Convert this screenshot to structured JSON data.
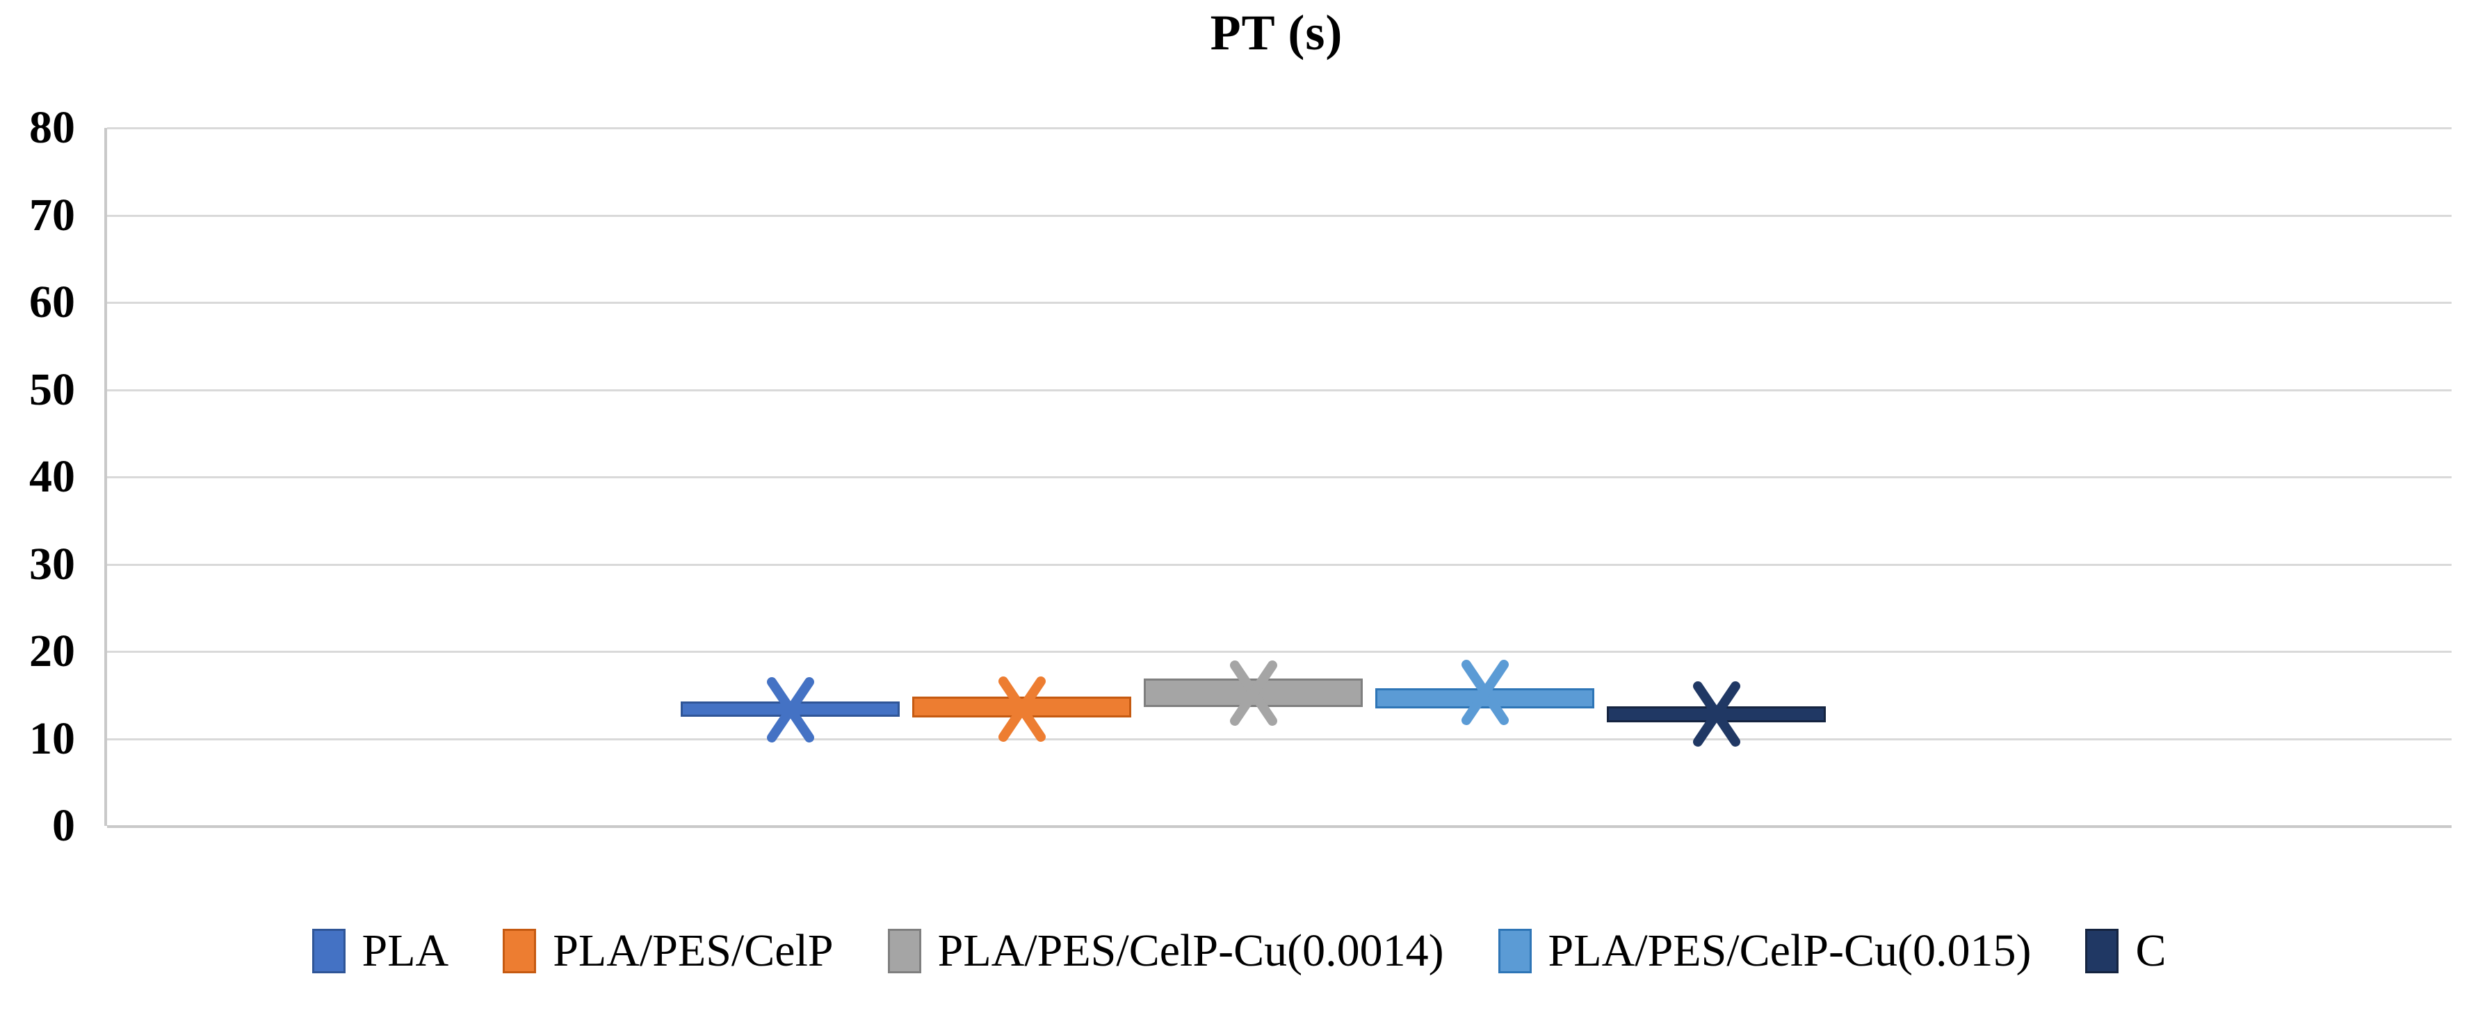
{
  "chart_data": {
    "type": "box",
    "title": "PT (s)",
    "xlabel": "",
    "ylabel": "",
    "ylim": [
      0,
      80
    ],
    "yticks": [
      0,
      10,
      20,
      30,
      40,
      50,
      60,
      70,
      80
    ],
    "grid": true,
    "legend_position": "bottom",
    "marker_style": "x-mean-marker",
    "series": [
      {
        "name": "PLA",
        "color": "#4472C4",
        "border_color": "#2F5597",
        "box_low": 12.5,
        "box_high": 14.3,
        "mean": 13.3
      },
      {
        "name": "PLA/PES/CelP",
        "color": "#ED7D31",
        "border_color": "#C55A11",
        "box_low": 12.4,
        "box_high": 14.8,
        "mean": 13.4
      },
      {
        "name": "PLA/PES/CelP-Cu(0.0014)",
        "color": "#A5A5A5",
        "border_color": "#7F7F7F",
        "box_low": 13.6,
        "box_high": 16.9,
        "mean": 15.2
      },
      {
        "name": "PLA/PES/CelP-Cu(0.015)",
        "color": "#5B9BD5",
        "border_color": "#2E75B6",
        "box_low": 13.5,
        "box_high": 15.8,
        "mean": 15.3
      },
      {
        "name": "C",
        "color": "#203864",
        "border_color": "#152440",
        "box_low": 11.9,
        "box_high": 13.7,
        "mean": 12.8
      }
    ]
  },
  "colors": {
    "background": "#FFFFFF",
    "gridline": "#D9D9D9",
    "axis_line": "#C9C9C9",
    "text": "#000000"
  }
}
